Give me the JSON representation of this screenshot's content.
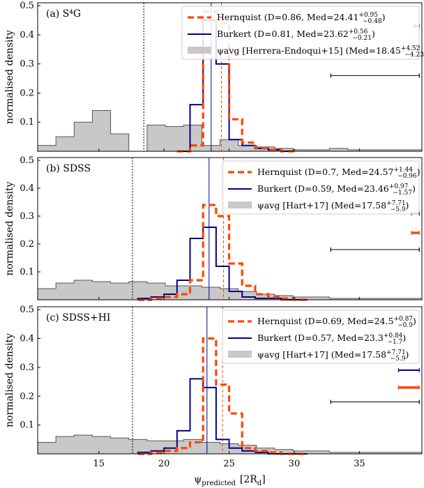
{
  "chart_data": {
    "type": "histogram",
    "shared_x": {
      "label_main": "ψ",
      "label_sub": "predicted",
      "label_unit": "[2R",
      "label_unit_sub": "d",
      "label_close": "]",
      "xlim": [
        10.3,
        39.8
      ],
      "ticks": [
        15,
        20,
        25,
        30,
        35
      ],
      "tick_labels": [
        "15",
        "20",
        "25",
        "30",
        "35"
      ]
    },
    "ylabel": "normalised density",
    "ylim": [
      0,
      0.51
    ],
    "yticks": [
      0.1,
      0.2,
      0.3,
      0.4,
      0.5
    ],
    "ytick_labels": [
      "0.1",
      "0.2",
      "0.3",
      "0.4",
      "0.5"
    ],
    "colors": {
      "hernquist": "#ff4500",
      "burkert": "#00008b",
      "psi_avg_fill": "#c8c8c8",
      "psi_avg_edge": "#555555"
    },
    "panels": [
      {
        "label": "(a) S⁴G",
        "legend": {
          "hernquist": {
            "text": "Hernquist (D=0.86, Med=24.41",
            "sup": "+0.95",
            "sub": "−0.48",
            "close": ")"
          },
          "burkert": {
            "text": "Burkert (D=0.81, Med=23.62",
            "sup": "+0.56",
            "sub": "−0.21",
            "close": ")"
          },
          "psi": {
            "text": "ψavg [Herrera-Endoqui+15] (Med=18.45",
            "sup": "+4.52",
            "sub": "−4.23",
            "close": ")"
          }
        },
        "median_psi": 18.45,
        "median_hernquist": 24.41,
        "median_burkert": 23.62,
        "bins_psi": [
          10.3,
          11.7,
          13.1,
          14.5,
          15.9,
          17.3,
          18.7,
          20.1,
          21.5,
          22.9,
          24.3,
          25.7,
          27.1,
          28.5,
          29.9,
          31.3,
          32.7,
          34.1,
          35.5,
          36.9,
          38.3,
          39.8
        ],
        "psi_values": [
          0.02,
          0.05,
          0.1,
          0.14,
          0.06,
          0.0,
          0.09,
          0.085,
          0.09,
          0.02,
          0.04,
          0.02,
          0.015,
          0.01,
          0.005,
          0.005,
          0.01,
          0.005,
          0.005,
          0.005,
          0.005
        ],
        "bins_model": [
          21.0,
          22.0,
          23.0,
          24.0,
          25.0,
          26.0,
          27.0,
          28.0,
          29.0,
          30.0
        ],
        "hernquist_values": [
          0.0,
          0.02,
          0.48,
          0.44,
          0.11,
          0.03,
          0.01,
          0.005,
          0.0
        ],
        "burkert_values": [
          0.0,
          0.16,
          0.45,
          0.3,
          0.04,
          0.02,
          0.01,
          0.005,
          0.0
        ],
        "errbar_burkert": [
          39.2,
          39.6
        ],
        "errbar_hernquist": [
          39.0,
          39.6
        ],
        "errbar_psi": [
          32.8,
          39.6
        ]
      },
      {
        "label": "(b) SDSS",
        "legend": {
          "hernquist": {
            "text": "Hernquist (D=0.7, Med=24.57",
            "sup": "+1.44",
            "sub": "−0.96",
            "close": ")"
          },
          "burkert": {
            "text": "Burkert (D=0.59, Med=23.46",
            "sup": "+0.97",
            "sub": "−1.57",
            "close": ")"
          },
          "psi": {
            "text": "ψavg [Hart+17] (Med=17.58",
            "sup": "+7.71",
            "sub": "−5.9",
            "close": ")"
          }
        },
        "median_psi": 17.58,
        "median_hernquist": 24.57,
        "median_burkert": 23.46,
        "bins_psi": [
          10.3,
          11.7,
          13.1,
          14.5,
          15.9,
          17.3,
          18.7,
          20.1,
          21.5,
          22.9,
          24.3,
          25.7,
          27.1,
          28.5,
          29.9,
          31.3,
          32.7,
          34.1,
          35.5,
          36.9,
          38.3,
          39.8
        ],
        "psi_values": [
          0.04,
          0.06,
          0.07,
          0.065,
          0.06,
          0.065,
          0.06,
          0.05,
          0.05,
          0.045,
          0.04,
          0.03,
          0.02,
          0.015,
          0.01,
          0.01,
          0.005,
          0.005,
          0.005,
          0.005,
          0.005
        ],
        "bins_model": [
          18.0,
          19.0,
          20.0,
          21.0,
          22.0,
          23.0,
          24.0,
          25.0,
          26.0,
          27.0,
          28.0,
          29.0,
          30.0,
          31.0
        ],
        "hernquist_values": [
          0.0,
          0.005,
          0.01,
          0.02,
          0.07,
          0.34,
          0.3,
          0.13,
          0.05,
          0.02,
          0.01,
          0.005,
          0.0
        ],
        "burkert_values": [
          0.005,
          0.01,
          0.02,
          0.07,
          0.22,
          0.26,
          0.12,
          0.03,
          0.01,
          0.005,
          0.005,
          0.0,
          0.0
        ],
        "errbar_burkert": [
          39.0,
          39.6
        ],
        "errbar_hernquist": [
          39.0,
          39.6
        ],
        "errbar_psi": [
          32.8,
          39.6
        ]
      },
      {
        "label": "(c) SDSS+HI",
        "legend": {
          "hernquist": {
            "text": "Hernquist (D=0.69, Med=24.5",
            "sup": "+0.87",
            "sub": "−0.9",
            "close": ")"
          },
          "burkert": {
            "text": "Burkert (D=0.57, Med=23.3",
            "sup": "+0.84",
            "sub": "−1.7",
            "close": ")"
          },
          "psi": {
            "text": "ψavg [Hart+17] (Med=17.58",
            "sup": "+7.71",
            "sub": "−5.9",
            "close": ")"
          }
        },
        "median_psi": 17.58,
        "median_hernquist": 24.5,
        "median_burkert": 23.3,
        "bins_psi": [
          10.3,
          11.7,
          13.1,
          14.5,
          15.9,
          17.3,
          18.7,
          20.1,
          21.5,
          22.9,
          24.3,
          25.7,
          27.1,
          28.5,
          29.9,
          31.3,
          32.7,
          34.1,
          35.5,
          36.9,
          38.3,
          39.8
        ],
        "psi_values": [
          0.04,
          0.06,
          0.065,
          0.06,
          0.055,
          0.05,
          0.045,
          0.045,
          0.05,
          0.04,
          0.035,
          0.03,
          0.02,
          0.015,
          0.01,
          0.01,
          0.005,
          0.005,
          0.005,
          0.005,
          0.005
        ],
        "bins_model": [
          18.0,
          19.0,
          20.0,
          21.0,
          22.0,
          23.0,
          24.0,
          25.0,
          26.0,
          27.0,
          28.0,
          29.0,
          30.0,
          31.0
        ],
        "hernquist_values": [
          0.0,
          0.005,
          0.01,
          0.02,
          0.04,
          0.4,
          0.24,
          0.14,
          0.02,
          0.01,
          0.005,
          0.0,
          0.0
        ],
        "burkert_values": [
          0.005,
          0.01,
          0.02,
          0.08,
          0.26,
          0.23,
          0.05,
          0.02,
          0.01,
          0.005,
          0.0,
          0.0,
          0.0
        ],
        "errbar_burkert": [
          38.0,
          39.6
        ],
        "errbar_hernquist": [
          38.0,
          39.6
        ],
        "errbar_psi": [
          32.8,
          39.6
        ]
      }
    ]
  }
}
